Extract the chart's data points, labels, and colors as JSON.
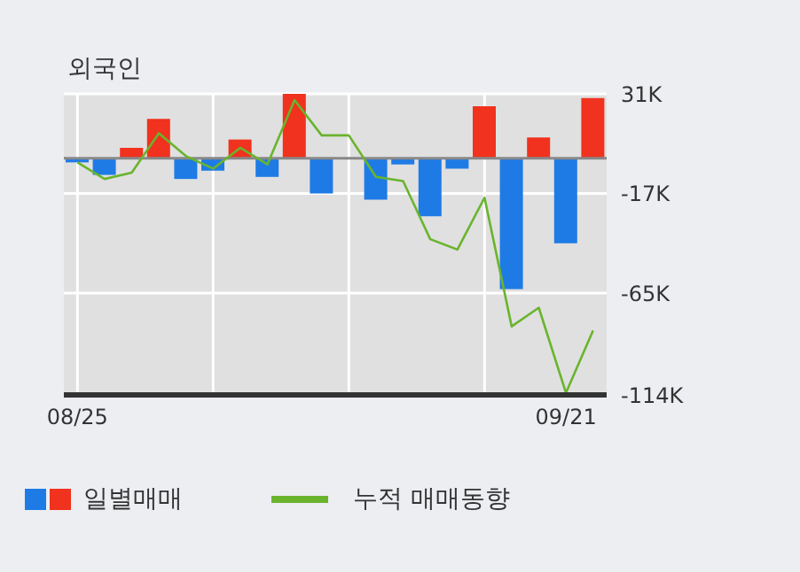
{
  "chart_data": {
    "type": "bar",
    "title": "외국인",
    "categories": [
      "08/25",
      null,
      null,
      null,
      null,
      null,
      null,
      null,
      null,
      null,
      null,
      null,
      null,
      null,
      null,
      null,
      null,
      null,
      "09/21",
      null
    ],
    "series": [
      {
        "name": "일별매매",
        "colors": [
          "#1e7be6",
          "#1e7be6",
          "#f0321e",
          "#f0321e",
          "#1e7be6",
          "#1e7be6",
          "#f0321e",
          "#1e7be6",
          "#f0321e",
          "#1e7be6",
          "#1e7be6",
          "#1e7be6",
          "#1e7be6",
          "#1e7be6",
          "#1e7be6",
          "#f0321e",
          "#1e7be6",
          "#f0321e",
          "#1e7be6",
          "#f0321e"
        ],
        "values": [
          -2,
          -8,
          5,
          19,
          -10,
          -6,
          9,
          -9,
          31,
          -17,
          0,
          -20,
          -3,
          -28,
          -5,
          25,
          -63,
          10,
          -41,
          29
        ]
      },
      {
        "name": "누적 매매동향",
        "type": "line",
        "color": "#6ab42d",
        "values": [
          -2,
          -10,
          -7,
          12,
          1,
          -5,
          5,
          -3,
          28,
          11,
          11,
          -9,
          -11,
          -39,
          -44,
          -19,
          -81,
          -72,
          -113,
          -83
        ]
      }
    ],
    "ylim": [
      -114,
      31
    ],
    "yticks": [
      {
        "value": 31,
        "label": "31K"
      },
      {
        "value": -17,
        "label": "-17K"
      },
      {
        "value": -65,
        "label": "-65K"
      },
      {
        "value": -114,
        "label": "-114K"
      }
    ],
    "ref_lines": [
      {
        "axis": "y",
        "value": 0,
        "color": "#888888"
      }
    ],
    "grid": true,
    "legend": "bottom"
  }
}
